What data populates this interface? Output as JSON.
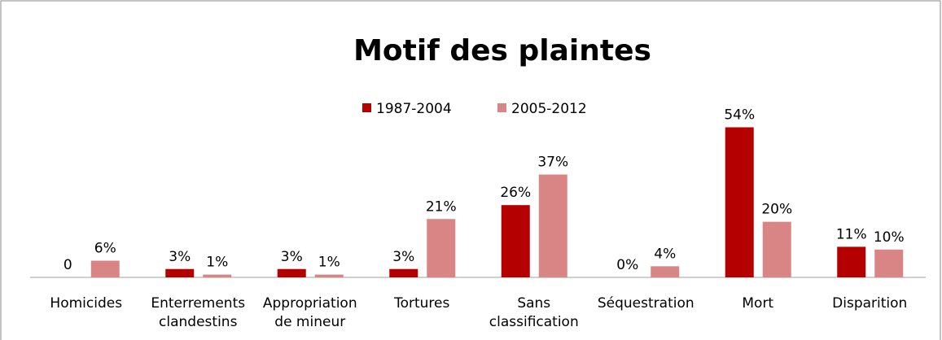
{
  "chart_data": {
    "type": "bar",
    "title": "Motif des plaintes",
    "categories": [
      "Homicides",
      "Enterrements\nclandestins",
      "Appropriation\nde mineur",
      "Tortures",
      "Sans\nclassification",
      "Séquestration",
      "Mort",
      "Disparition"
    ],
    "series": [
      {
        "name": "1987-2004",
        "color": "#b50000",
        "values": [
          0,
          3,
          3,
          3,
          26,
          0,
          54,
          11
        ],
        "value_labels": [
          "0",
          "3%",
          "3%",
          "3%",
          "26%",
          "0%",
          "54%",
          "11%"
        ]
      },
      {
        "name": "2005-2012",
        "color": "#d98585",
        "values": [
          6,
          1,
          1,
          21,
          37,
          4,
          20,
          10
        ],
        "value_labels": [
          "6%",
          "1%",
          "1%",
          "21%",
          "37%",
          "4%",
          "20%",
          "10%"
        ]
      }
    ],
    "ylim": [
      0,
      60
    ],
    "legend": "top"
  }
}
